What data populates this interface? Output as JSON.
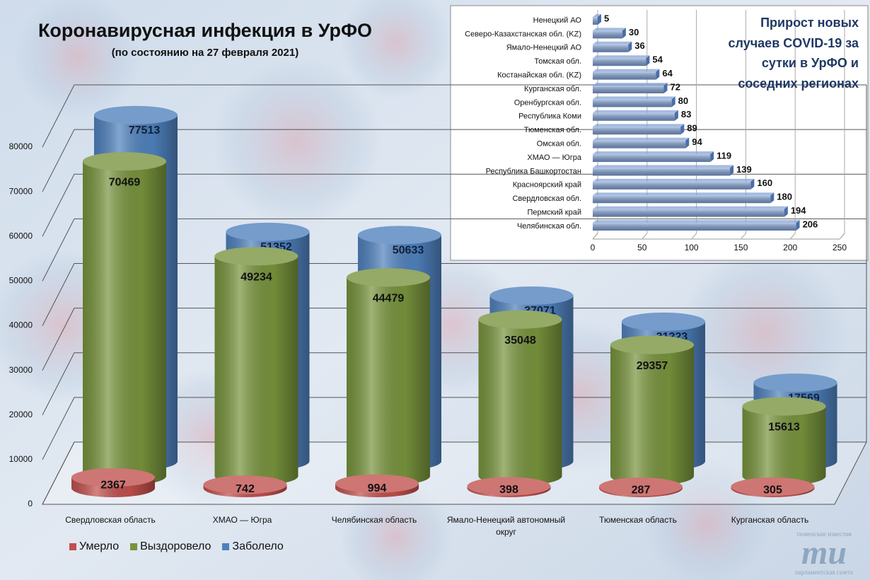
{
  "chart_data": [
    {
      "type": "cylinder",
      "title": "Коронавирусная инфекция в УрФО",
      "subtitle": "(по состоянию на 27 февраля 2021)",
      "categories": [
        "Свердловская область",
        "ХМАО — Югра",
        "Челябинская область",
        "Ямало-Ненецкий автономный округ",
        "Тюменская область",
        "Курганская область"
      ],
      "series": [
        {
          "name": "Умерло",
          "color": "#c0504d",
          "values": [
            2367,
            742,
            994,
            398,
            287,
            305
          ]
        },
        {
          "name": "Выздоровело",
          "color": "#77933c",
          "values": [
            70469,
            49234,
            44479,
            35048,
            29357,
            15613
          ]
        },
        {
          "name": "Заболело",
          "color": "#4f81bd",
          "values": [
            77513,
            51352,
            50633,
            37071,
            31223,
            17569
          ]
        }
      ],
      "ylim": [
        0,
        80000
      ],
      "yticks": [
        0,
        10000,
        20000,
        30000,
        40000,
        50000,
        60000,
        70000,
        80000
      ],
      "grid": true,
      "legend": "bottom-left"
    },
    {
      "type": "bar",
      "orientation": "horizontal",
      "title": "Прирост новых случаев COVID-19 за сутки в УрФО и соседних регионах",
      "categories": [
        "Ненецкий АО",
        "Северо-Казахстанская обл. (KZ)",
        "Ямало-Ненецкий АО",
        "Томская обл.",
        "Костанайская обл. (KZ)",
        "Курганская обл.",
        "Оренбургская обл.",
        "Республика Коми",
        "Тюменская обл.",
        "Омская обл.",
        "ХМАО — Югра",
        "Республика Башкортостан",
        "Красноярский край",
        "Свердловская обл.",
        "Пермский край",
        "Челябинская обл."
      ],
      "values": [
        5,
        30,
        36,
        54,
        64,
        72,
        80,
        83,
        89,
        94,
        119,
        139,
        160,
        180,
        194,
        206
      ],
      "color": "#7f9fd3",
      "xlim": [
        0,
        250
      ],
      "xticks": [
        0,
        50,
        100,
        150,
        200,
        250
      ],
      "grid": true
    }
  ],
  "logo": {
    "top": "тюменские известия",
    "mark": "ти",
    "bottom": "парламентская газета"
  }
}
